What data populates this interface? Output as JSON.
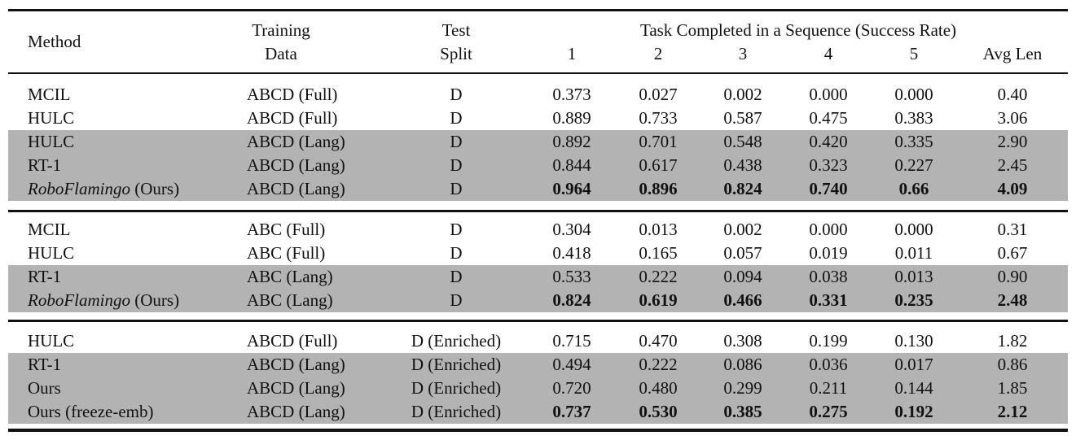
{
  "header": {
    "method": "Method",
    "training_line1": "Training",
    "training_line2": "Data",
    "test_line1": "Test",
    "test_line2": "Split",
    "group": "Task Completed in a Sequence (Success Rate)",
    "cols": [
      "1",
      "2",
      "3",
      "4",
      "5",
      "Avg Len"
    ]
  },
  "sections": [
    {
      "rows": [
        {
          "method": "MCIL",
          "suffix": "",
          "italic": false,
          "data": "ABCD (Full)",
          "split": "D",
          "values": [
            "0.373",
            "0.027",
            "0.002",
            "0.000",
            "0.000",
            "0.40"
          ],
          "shaded": false,
          "bold": false
        },
        {
          "method": "HULC",
          "suffix": "",
          "italic": false,
          "data": "ABCD (Full)",
          "split": "D",
          "values": [
            "0.889",
            "0.733",
            "0.587",
            "0.475",
            "0.383",
            "3.06"
          ],
          "shaded": false,
          "bold": false
        },
        {
          "method": "HULC",
          "suffix": "",
          "italic": false,
          "data": "ABCD (Lang)",
          "split": "D",
          "values": [
            "0.892",
            "0.701",
            "0.548",
            "0.420",
            "0.335",
            "2.90"
          ],
          "shaded": true,
          "bold": false
        },
        {
          "method": "RT-1",
          "suffix": "",
          "italic": false,
          "data": "ABCD (Lang)",
          "split": "D",
          "values": [
            "0.844",
            "0.617",
            "0.438",
            "0.323",
            "0.227",
            "2.45"
          ],
          "shaded": true,
          "bold": false
        },
        {
          "method": "RoboFlamingo",
          "suffix": " (Ours)",
          "italic": true,
          "data": "ABCD (Lang)",
          "split": "D",
          "values": [
            "0.964",
            "0.896",
            "0.824",
            "0.740",
            "0.66",
            "4.09"
          ],
          "shaded": true,
          "bold": true
        }
      ]
    },
    {
      "rows": [
        {
          "method": "MCIL",
          "suffix": "",
          "italic": false,
          "data": "ABC (Full)",
          "split": "D",
          "values": [
            "0.304",
            "0.013",
            "0.002",
            "0.000",
            "0.000",
            "0.31"
          ],
          "shaded": false,
          "bold": false
        },
        {
          "method": "HULC",
          "suffix": "",
          "italic": false,
          "data": "ABC (Full)",
          "split": "D",
          "values": [
            "0.418",
            "0.165",
            "0.057",
            "0.019",
            "0.011",
            "0.67"
          ],
          "shaded": false,
          "bold": false
        },
        {
          "method": "RT-1",
          "suffix": "",
          "italic": false,
          "data": "ABC (Lang)",
          "split": "D",
          "values": [
            "0.533",
            "0.222",
            "0.094",
            "0.038",
            "0.013",
            "0.90"
          ],
          "shaded": true,
          "bold": false
        },
        {
          "method": "RoboFlamingo",
          "suffix": " (Ours)",
          "italic": true,
          "data": "ABC (Lang)",
          "split": "D",
          "values": [
            "0.824",
            "0.619",
            "0.466",
            "0.331",
            "0.235",
            "2.48"
          ],
          "shaded": true,
          "bold": true
        }
      ]
    },
    {
      "rows": [
        {
          "method": "HULC",
          "suffix": "",
          "italic": false,
          "data": "ABCD (Full)",
          "split": "D (Enriched)",
          "values": [
            "0.715",
            "0.470",
            "0.308",
            "0.199",
            "0.130",
            "1.82"
          ],
          "shaded": false,
          "bold": false
        },
        {
          "method": "RT-1",
          "suffix": "",
          "italic": false,
          "data": "ABCD (Lang)",
          "split": "D (Enriched)",
          "values": [
            "0.494",
            "0.222",
            "0.086",
            "0.036",
            "0.017",
            "0.86"
          ],
          "shaded": true,
          "bold": false
        },
        {
          "method": "Ours",
          "suffix": "",
          "italic": false,
          "data": "ABCD (Lang)",
          "split": "D (Enriched)",
          "values": [
            "0.720",
            "0.480",
            "0.299",
            "0.211",
            "0.144",
            "1.85"
          ],
          "shaded": true,
          "bold": false
        },
        {
          "method": "Ours (freeze-emb)",
          "suffix": "",
          "italic": false,
          "data": "ABCD (Lang)",
          "split": "D (Enriched)",
          "values": [
            "0.737",
            "0.530",
            "0.385",
            "0.275",
            "0.192",
            "2.12"
          ],
          "shaded": true,
          "bold": true
        }
      ]
    }
  ]
}
